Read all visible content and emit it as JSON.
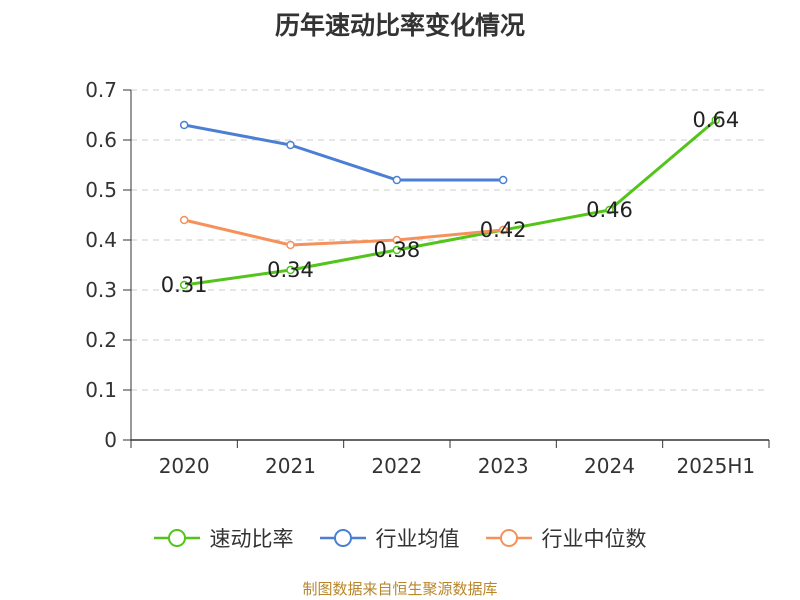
{
  "title": "历年速动比率变化情况",
  "source": "制图数据来自恒生聚源数据库",
  "colors": {
    "quick_ratio": "#52c41a",
    "industry_avg": "#4a7fd4",
    "industry_median": "#f5925b",
    "grid": "#cccccc",
    "axis": "#333333",
    "title": "#333333",
    "source": "#b8862b"
  },
  "chart_data": {
    "type": "line",
    "title": "历年速动比率变化情况",
    "xlabel": "",
    "ylabel": "",
    "categories": [
      "2020",
      "2021",
      "2022",
      "2023",
      "2024",
      "2025H1"
    ],
    "ylim": [
      0,
      0.7
    ],
    "yticks": [
      "0",
      "0.1",
      "0.2",
      "0.3",
      "0.4",
      "0.5",
      "0.6",
      "0.7"
    ],
    "grid": "horizontal dashed",
    "legend_position": "bottom",
    "series": [
      {
        "name": "速动比率",
        "color": "#52c41a",
        "values": [
          0.31,
          0.34,
          0.38,
          0.42,
          0.46,
          0.64
        ],
        "labels": [
          "0.31",
          "0.34",
          "0.38",
          "0.42",
          "0.46",
          "0.64"
        ]
      },
      {
        "name": "行业均值",
        "color": "#4a7fd4",
        "values": [
          0.63,
          0.59,
          0.52,
          0.52,
          null,
          null
        ]
      },
      {
        "name": "行业中位数",
        "color": "#f5925b",
        "values": [
          0.44,
          0.39,
          0.4,
          0.42,
          null,
          null
        ]
      }
    ]
  }
}
